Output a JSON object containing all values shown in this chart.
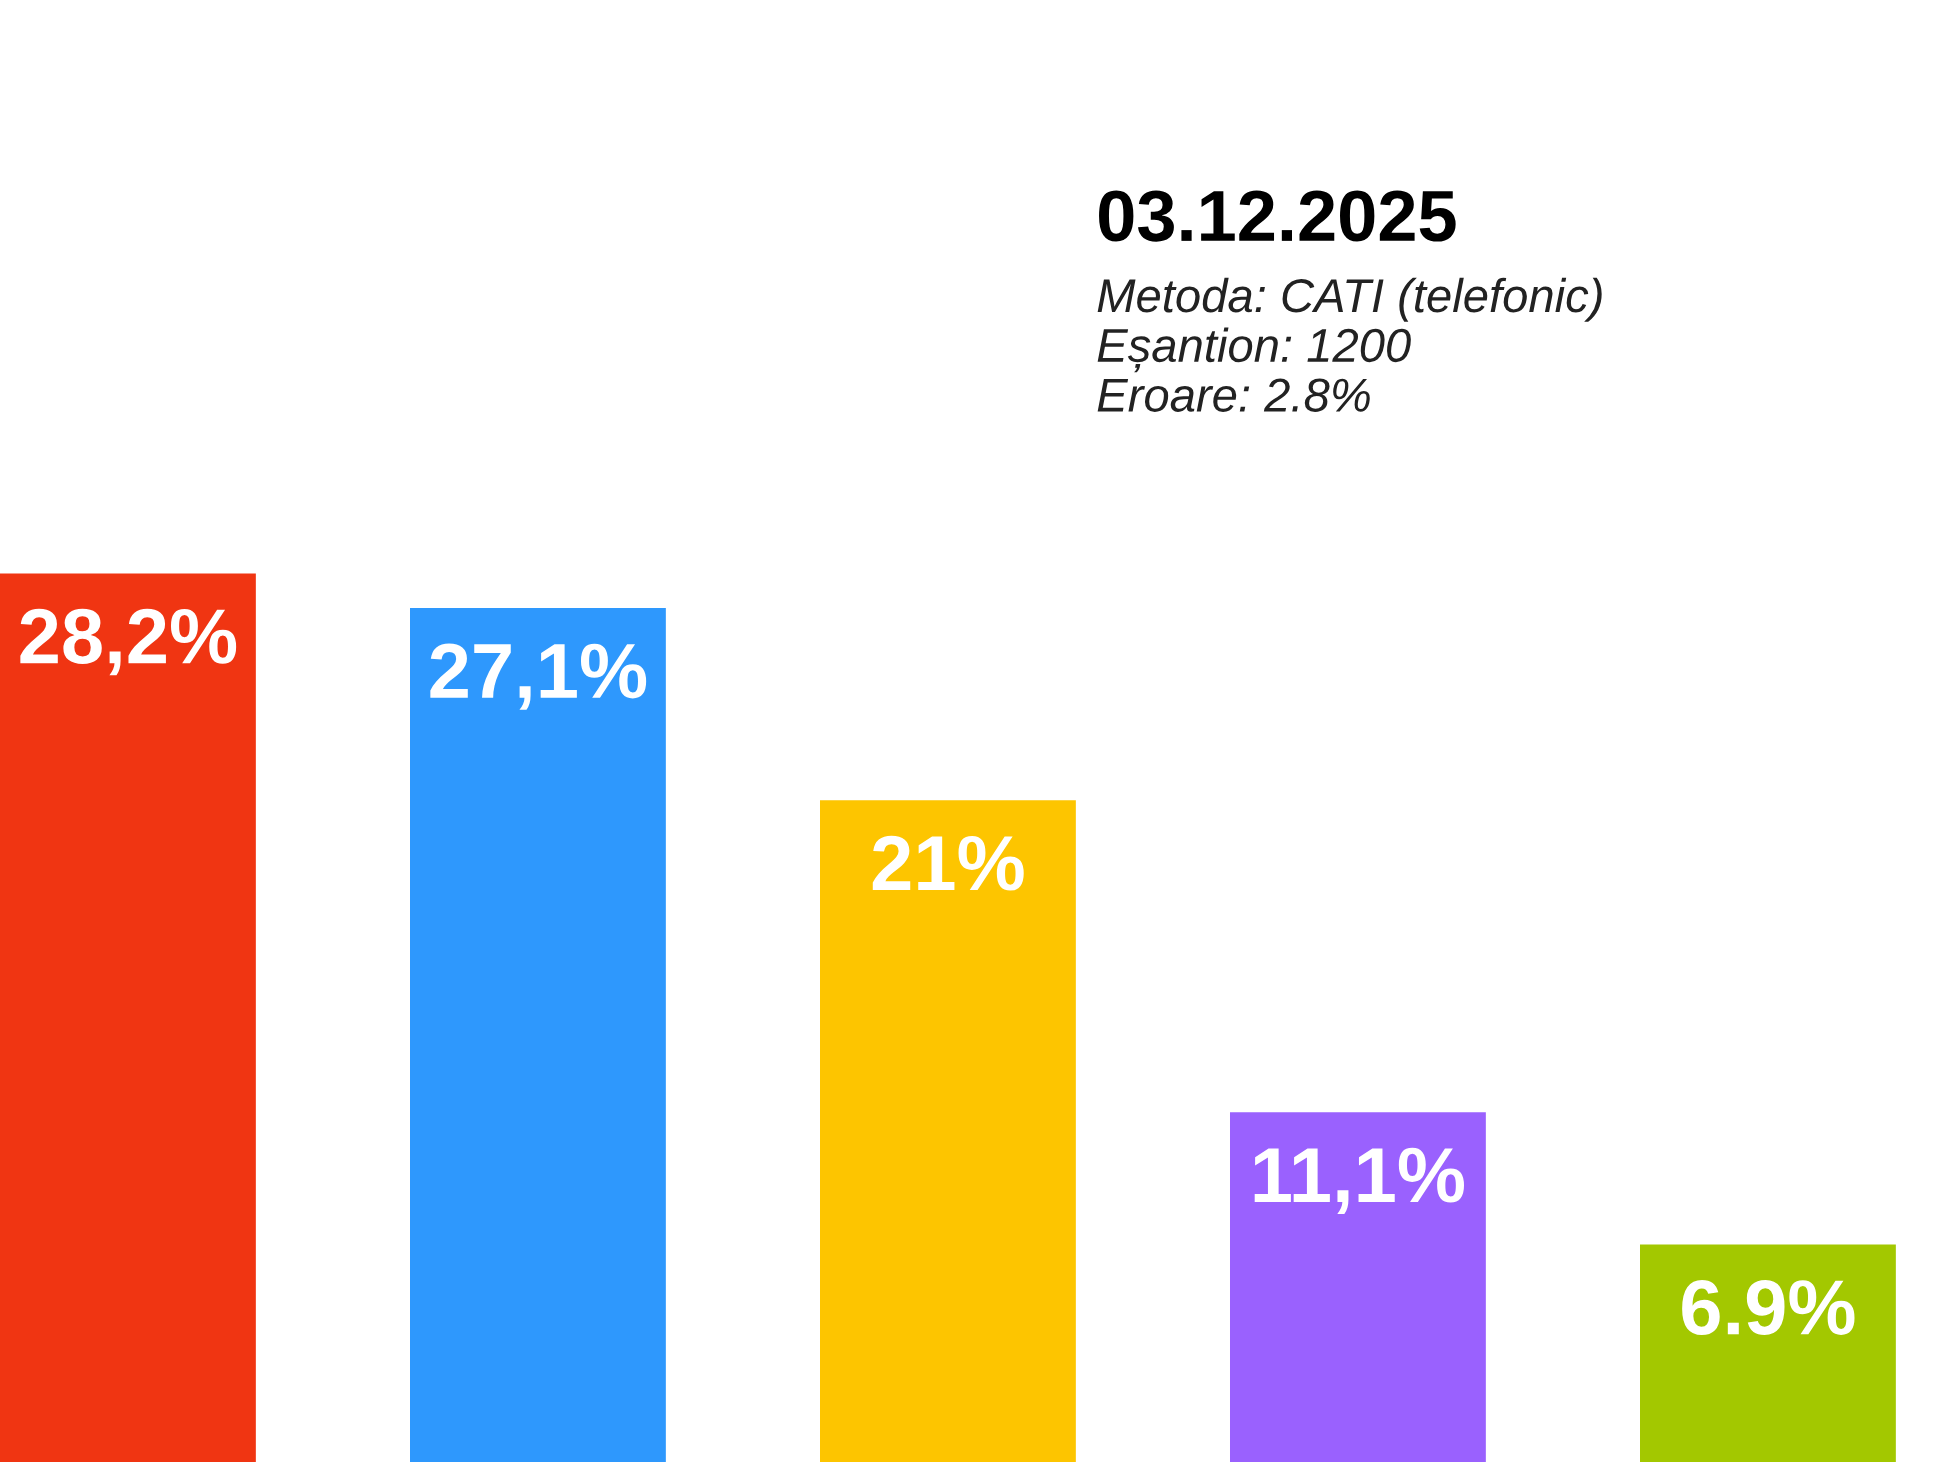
{
  "chart_data": {
    "type": "bar",
    "title": "03.12.2025",
    "annotations": [
      "Metoda: CATI (telefonic)",
      "Eșantion: 1200",
      "Eroare: 2.8%"
    ],
    "categories": [
      null,
      null,
      null,
      null,
      null
    ],
    "values": [
      28.2,
      27.1,
      21,
      11.1,
      6.9
    ],
    "colors": [
      "#f03512",
      "#2e98fd",
      "#fdc500",
      "#9a61fe",
      "#a3c800"
    ],
    "value_labels": [
      "28,2%",
      "27,1%",
      "21%",
      "11,1%",
      "6.9%"
    ],
    "ylim": [
      0,
      46.4
    ],
    "grid": false,
    "legend": false
  }
}
